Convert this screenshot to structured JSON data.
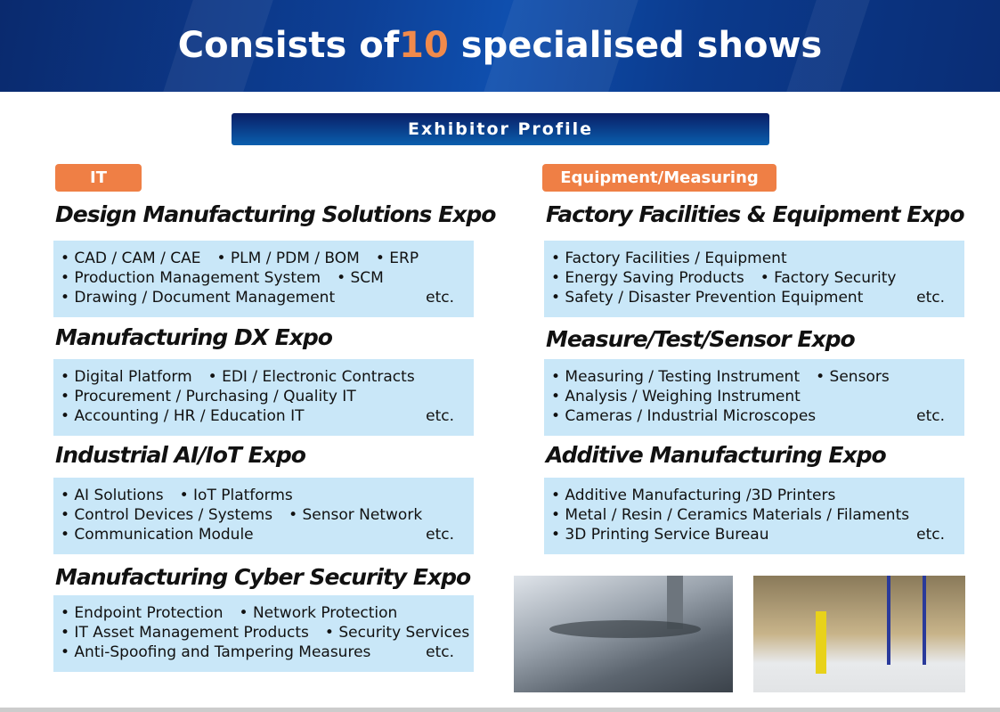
{
  "header": {
    "title_pre": "Consists of",
    "title_num": "10",
    "title_post": " specialised shows",
    "accent": "#f08a4b"
  },
  "profile_label": "Exhibitor Profile",
  "categories": {
    "left": "IT",
    "right": "Equipment/Measuring"
  },
  "left": [
    {
      "title": "Design Manufacturing Solutions Expo",
      "lines": [
        [
          "• CAD / CAM / CAE",
          "• PLM / PDM / BOM",
          "• ERP"
        ],
        [
          "• Production Management System",
          "• SCM"
        ],
        [
          "• Drawing / Document Management"
        ]
      ]
    },
    {
      "title": "Manufacturing DX Expo",
      "lines": [
        [
          "• Digital Platform",
          "• EDI / Electronic Contracts"
        ],
        [
          "• Procurement / Purchasing / Quality IT"
        ],
        [
          "• Accounting / HR / Education IT"
        ]
      ]
    },
    {
      "title": "Industrial AI/IoT Expo",
      "lines": [
        [
          "• AI Solutions",
          "• IoT Platforms"
        ],
        [
          "• Control Devices / Systems",
          "• Sensor Network"
        ],
        [
          "• Communication Module"
        ]
      ]
    },
    {
      "title": "Manufacturing Cyber Security Expo",
      "lines": [
        [
          "• Endpoint Protection",
          "• Network Protection"
        ],
        [
          "• IT Asset Management Products",
          "• Security Services"
        ],
        [
          "• Anti-Spoofing and Tampering Measures"
        ]
      ]
    }
  ],
  "right": [
    {
      "title": "Factory Facilities & Equipment Expo",
      "lines": [
        [
          "• Factory Facilities / Equipment"
        ],
        [
          "• Energy Saving Products",
          "• Factory Security"
        ],
        [
          "• Safety / Disaster Prevention Equipment"
        ]
      ]
    },
    {
      "title": "Measure/Test/Sensor Expo",
      "lines": [
        [
          "• Measuring / Testing Instrument",
          "• Sensors"
        ],
        [
          "• Analysis /  Weighing Instrument"
        ],
        [
          "• Cameras / Industrial Microscopes"
        ]
      ]
    },
    {
      "title": "Additive Manufacturing Expo",
      "lines": [
        [
          "• Additive Manufacturing /3D Printers"
        ],
        [
          "• Metal / Resin / Ceramics Materials / Filaments"
        ],
        [
          "• 3D Printing Service Bureau"
        ]
      ]
    }
  ],
  "etc": "etc.",
  "images": [
    "engine-block-measuring-photo",
    "warehouse-forklift-photo"
  ]
}
